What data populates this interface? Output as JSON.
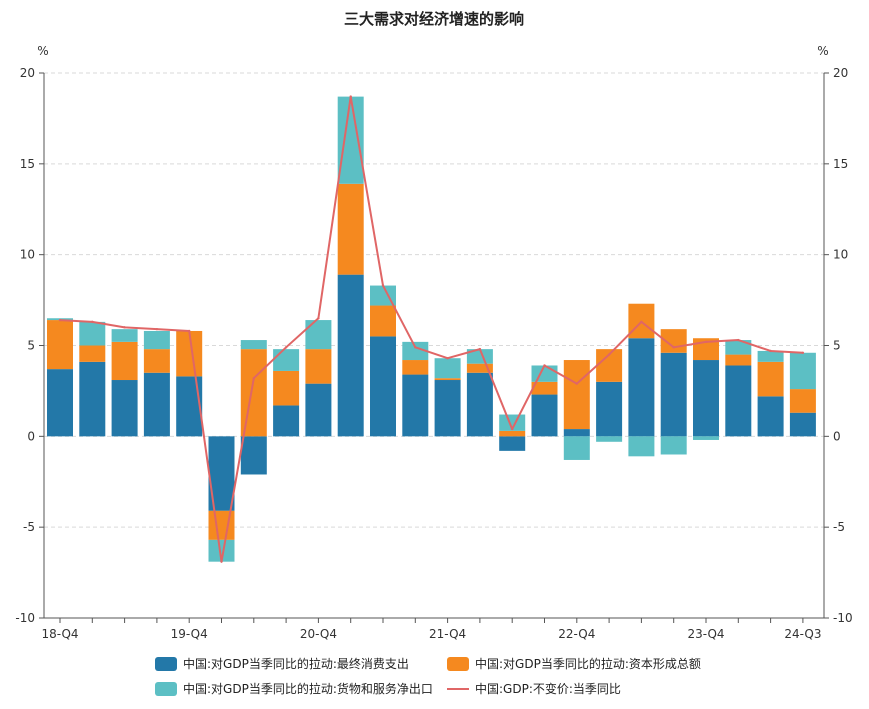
{
  "chart_data": {
    "type": "bar",
    "stacked": true,
    "title": "三大需求对经济增速的影响",
    "unit_left": "%",
    "unit_right": "%",
    "ylim": [
      -10,
      20
    ],
    "y_ticks": [
      -10,
      -5,
      0,
      5,
      10,
      15,
      20
    ],
    "categories": [
      "18-Q4",
      "19-Q1",
      "19-Q2",
      "19-Q3",
      "19-Q4",
      "20-Q1",
      "20-Q2",
      "20-Q3",
      "20-Q4",
      "21-Q1",
      "21-Q2",
      "21-Q3",
      "21-Q4",
      "22-Q1",
      "22-Q2",
      "22-Q3",
      "22-Q4",
      "23-Q1",
      "23-Q2",
      "23-Q3",
      "23-Q4",
      "24-Q1",
      "24-Q2",
      "24-Q3"
    ],
    "x_tick_labels": [
      {
        "index": 0,
        "label": "18-Q4"
      },
      {
        "index": 4,
        "label": "19-Q4"
      },
      {
        "index": 8,
        "label": "20-Q4"
      },
      {
        "index": 12,
        "label": "21-Q4"
      },
      {
        "index": 16,
        "label": "22-Q4"
      },
      {
        "index": 20,
        "label": "23-Q4"
      },
      {
        "index": 23,
        "label": "24-Q3"
      }
    ],
    "grid": "horizontal-dashed",
    "legend_position": "bottom",
    "series": [
      {
        "name": "中国:对GDP当季同比的拉动:最终消费支出",
        "kind": "bar",
        "color": "#2378A8",
        "values": [
          3.7,
          4.1,
          3.1,
          3.5,
          3.3,
          -4.1,
          -2.1,
          1.7,
          2.9,
          8.9,
          5.5,
          3.4,
          3.1,
          3.5,
          -0.8,
          2.3,
          0.4,
          3.0,
          5.4,
          4.6,
          4.2,
          3.9,
          2.2,
          1.3
        ]
      },
      {
        "name": "中国:对GDP当季同比的拉动:资本形成总额",
        "kind": "bar",
        "color": "#F5891F",
        "values": [
          2.7,
          0.9,
          2.1,
          1.3,
          2.5,
          -1.6,
          4.8,
          1.9,
          1.9,
          5.0,
          1.7,
          0.8,
          0.1,
          0.5,
          0.3,
          0.7,
          3.8,
          1.8,
          1.9,
          1.3,
          1.2,
          0.6,
          1.9,
          1.3
        ]
      },
      {
        "name": "中国:对GDP当季同比的拉动:货物和服务净出口",
        "kind": "bar",
        "color": "#5CBFC4",
        "values": [
          0.1,
          1.3,
          0.7,
          1.0,
          0.0,
          -1.2,
          0.5,
          1.2,
          1.6,
          4.8,
          1.1,
          1.0,
          1.1,
          0.8,
          0.9,
          0.9,
          -1.3,
          -0.3,
          -1.1,
          -1.0,
          -0.2,
          0.8,
          0.6,
          2.0
        ]
      },
      {
        "name": "中国:GDP:不变价:当季同比",
        "kind": "line",
        "color": "#E06666",
        "values": [
          6.4,
          6.3,
          6.0,
          5.9,
          5.8,
          -6.9,
          3.2,
          4.9,
          6.5,
          18.7,
          8.3,
          4.9,
          4.3,
          4.8,
          0.4,
          3.9,
          2.9,
          4.5,
          6.3,
          4.9,
          5.2,
          5.3,
          4.7,
          4.6
        ]
      }
    ]
  }
}
